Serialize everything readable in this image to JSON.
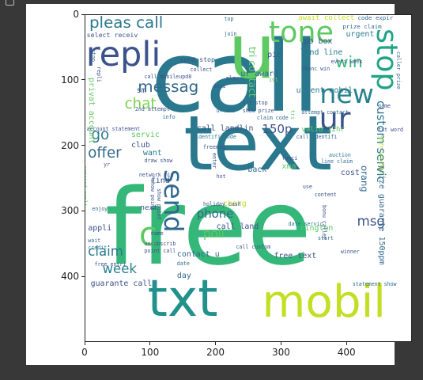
{
  "chart_data": {
    "type": "wordcloud",
    "background": "#ffffff",
    "x_ticks": [
      "0",
      "100",
      "200",
      "300",
      "400"
    ],
    "y_ticks": [
      "0",
      "100",
      "200",
      "300",
      "400"
    ],
    "xlim": [
      0,
      500
    ],
    "ylim": [
      500,
      0
    ],
    "words": [
      {
        "text": "call",
        "size": 150,
        "rotate": 0,
        "color": "#2a788e",
        "x": 100,
        "y": 20
      },
      {
        "text": "free",
        "size": 160,
        "rotate": 0,
        "color": "#35b779",
        "x": 30,
        "y": 245
      },
      {
        "text": "text",
        "size": 115,
        "rotate": 0,
        "color": "#2a788e",
        "x": 150,
        "y": 140
      },
      {
        "text": "txt",
        "size": 78,
        "rotate": 0,
        "color": "#21918c",
        "x": 95,
        "y": 395
      },
      {
        "text": "mobil",
        "size": 68,
        "rotate": 0,
        "color": "#c2df23",
        "x": 270,
        "y": 405
      },
      {
        "text": "u",
        "size": 115,
        "rotate": 0,
        "color": "#5ec962",
        "x": 218,
        "y": 0
      },
      {
        "text": "repli",
        "size": 52,
        "rotate": 0,
        "color": "#3b528b",
        "x": 1,
        "y": 35
      },
      {
        "text": "tone",
        "size": 44,
        "rotate": 0,
        "color": "#5ec962",
        "x": 280,
        "y": 5
      },
      {
        "text": "stop",
        "size": 44,
        "rotate": 90,
        "color": "#20a486",
        "x": 482,
        "y": 20
      },
      {
        "text": "new",
        "size": 40,
        "rotate": 0,
        "color": "#26828e",
        "x": 358,
        "y": 100
      },
      {
        "text": "ur",
        "size": 46,
        "rotate": 0,
        "color": "#3b528b",
        "x": 357,
        "y": 135
      },
      {
        "text": "send",
        "size": 40,
        "rotate": 90,
        "color": "#31688e",
        "x": 155,
        "y": 235
      },
      {
        "text": "c",
        "size": 50,
        "rotate": 0,
        "color": "#5ec962",
        "x": 82,
        "y": 310
      },
      {
        "text": "pleas call",
        "size": 24,
        "rotate": 0,
        "color": "#2a788e",
        "x": 6,
        "y": 0
      },
      {
        "text": "messag",
        "size": 24,
        "rotate": 0,
        "color": "#31688e",
        "x": 80,
        "y": 98
      },
      {
        "text": "chat",
        "size": 22,
        "rotate": 0,
        "color": "#7ad151",
        "x": 60,
        "y": 125
      },
      {
        "text": "win",
        "size": 24,
        "rotate": 0,
        "color": "#35b779",
        "x": 382,
        "y": 60
      },
      {
        "text": "go",
        "size": 22,
        "rotate": 0,
        "color": "#2a788e",
        "x": 9,
        "y": 173
      },
      {
        "text": "offer",
        "size": 22,
        "rotate": 0,
        "color": "#31688e",
        "x": 4,
        "y": 200
      },
      {
        "text": "150p",
        "size": 18,
        "rotate": 0,
        "color": "#3b528b",
        "x": 270,
        "y": 165
      },
      {
        "text": "phone",
        "size": 18,
        "rotate": 0,
        "color": "#31688e",
        "x": 170,
        "y": 295
      },
      {
        "text": "poli",
        "size": 18,
        "rotate": 0,
        "color": "#5ec962",
        "x": 180,
        "y": 325
      },
      {
        "text": "claim",
        "size": 20,
        "rotate": 0,
        "color": "#2a788e",
        "x": 4,
        "y": 352
      },
      {
        "text": "week",
        "size": 20,
        "rotate": 0,
        "color": "#26828e",
        "x": 26,
        "y": 378
      },
      {
        "text": "msg",
        "size": 20,
        "rotate": 0,
        "color": "#3b528b",
        "x": 415,
        "y": 305
      },
      {
        "text": "custom servic",
        "size": 18,
        "rotate": 90,
        "color": "#2a788e",
        "x": 460,
        "y": 130
      },
      {
        "text": "tri contact",
        "size": 15,
        "rotate": 90,
        "color": "#5ec962",
        "x": 262,
        "y": 48
      },
      {
        "text": "orang",
        "size": 14,
        "rotate": 90,
        "color": "#31688e",
        "x": 432,
        "y": 230
      },
      {
        "text": "prize guarante 150ppm",
        "size": 12,
        "rotate": 90,
        "color": "#31688e",
        "x": 458,
        "y": 230
      },
      {
        "text": "privat account",
        "size": 12,
        "rotate": 90,
        "color": "#5ec962",
        "x": 14,
        "y": 95
      },
      {
        "text": "await collect",
        "size": 11,
        "rotate": 0,
        "color": "#c2df23",
        "x": 325,
        "y": 0
      },
      {
        "text": "code expir",
        "size": 9,
        "rotate": 0,
        "color": "#31688e",
        "x": 416,
        "y": 0
      },
      {
        "text": "prize claim",
        "size": 9,
        "rotate": 0,
        "color": "#31688e",
        "x": 393,
        "y": 13
      },
      {
        "text": "urgent",
        "size": 12,
        "rotate": 0,
        "color": "#2a788e",
        "x": 398,
        "y": 24
      },
      {
        "text": "po box",
        "size": 12,
        "rotate": 0,
        "color": "#3b528b",
        "x": 334,
        "y": 35
      },
      {
        "text": "land line",
        "size": 12,
        "rotate": 0,
        "color": "#2a788e",
        "x": 328,
        "y": 52
      },
      {
        "text": "pic",
        "size": 12,
        "rotate": 0,
        "color": "#3b528b",
        "x": 278,
        "y": 55
      },
      {
        "text": "ur award",
        "size": 12,
        "rotate": 0,
        "color": "#31688e",
        "x": 237,
        "y": 85
      },
      {
        "text": "urgent mobil",
        "size": 12,
        "rotate": 0,
        "color": "#2a788e",
        "x": 322,
        "y": 110
      },
      {
        "text": "select receiv",
        "size": 10,
        "rotate": 0,
        "color": "#3b528b",
        "x": 2,
        "y": 25
      },
      {
        "text": "send stop",
        "size": 10,
        "rotate": 0,
        "color": "#3b528b",
        "x": 144,
        "y": 63
      },
      {
        "text": "call landlin",
        "size": 12,
        "rotate": 0,
        "color": "#3b528b",
        "x": 170,
        "y": 168
      },
      {
        "text": "valid 12hr",
        "size": 11,
        "rotate": 0,
        "color": "#5ec962",
        "x": 330,
        "y": 170
      },
      {
        "text": "servic",
        "size": 12,
        "rotate": 0,
        "color": "#5ec962",
        "x": 70,
        "y": 178
      },
      {
        "text": "club",
        "size": 12,
        "rotate": 0,
        "color": "#3b528b",
        "x": 70,
        "y": 193
      },
      {
        "text": "want",
        "size": 12,
        "rotate": 0,
        "color": "#2a788e",
        "x": 88,
        "y": 205
      },
      {
        "text": "back",
        "size": 12,
        "rotate": 0,
        "color": "#31688e",
        "x": 248,
        "y": 231
      },
      {
        "text": "xma",
        "size": 12,
        "rotate": 0,
        "color": "#5ec962",
        "x": 300,
        "y": 226
      },
      {
        "text": "cost",
        "size": 12,
        "rotate": 0,
        "color": "#3b528b",
        "x": 390,
        "y": 236
      },
      {
        "text": "find",
        "size": 12,
        "rotate": 0,
        "color": "#3b528b",
        "x": 100,
        "y": 247
      },
      {
        "text": "next",
        "size": 11,
        "rotate": 0,
        "color": "#3b528b",
        "x": 84,
        "y": 290
      },
      {
        "text": "appli",
        "size": 12,
        "rotate": 0,
        "color": "#3b528b",
        "x": 4,
        "y": 320
      },
      {
        "text": "charg",
        "size": 12,
        "rotate": 0,
        "color": "#c2df23",
        "x": 210,
        "y": 283
      },
      {
        "text": "call land",
        "size": 12,
        "rotate": 0,
        "color": "#3b528b",
        "x": 200,
        "y": 318
      },
      {
        "text": "rington",
        "size": 12,
        "rotate": 0,
        "color": "#5ec962",
        "x": 328,
        "y": 320
      },
      {
        "text": "contact u",
        "size": 12,
        "rotate": 0,
        "color": "#31688e",
        "x": 140,
        "y": 360
      },
      {
        "text": "free text",
        "size": 12,
        "rotate": 0,
        "color": "#3b528b",
        "x": 288,
        "y": 362
      },
      {
        "text": "day",
        "size": 12,
        "rotate": 0,
        "color": "#31688e",
        "x": 140,
        "y": 392
      },
      {
        "text": "guarante call",
        "size": 12,
        "rotate": 0,
        "color": "#3b528b",
        "x": 8,
        "y": 405
      },
      {
        "text": "sm",
        "size": 12,
        "rotate": 0,
        "color": "#3b528b",
        "x": 78,
        "y": 110
      },
      {
        "text": "top",
        "size": 8,
        "rotate": 0,
        "color": "#31688e",
        "x": 212,
        "y": 3
      },
      {
        "text": "join",
        "size": 8,
        "rotate": 0,
        "color": "#31688e",
        "x": 212,
        "y": 25
      },
      {
        "text": "collect",
        "size": 8,
        "rotate": 0,
        "color": "#3b528b",
        "x": 160,
        "y": 80
      },
      {
        "text": "call mobileupd8",
        "size": 8,
        "rotate": 0,
        "color": "#3b528b",
        "x": 90,
        "y": 90
      },
      {
        "text": "play",
        "size": 8,
        "rotate": 0,
        "color": "#3b528b",
        "x": 215,
        "y": 93
      },
      {
        "text": "sexi",
        "size": 8,
        "rotate": 0,
        "color": "#3b528b",
        "x": 195,
        "y": 105
      },
      {
        "text": "1st",
        "size": 8,
        "rotate": 0,
        "color": "#5ec962",
        "x": 280,
        "y": 95
      },
      {
        "text": "txt stop",
        "size": 8,
        "rotate": 0,
        "color": "#3b528b",
        "x": 240,
        "y": 130
      },
      {
        "text": "ur mob",
        "size": 8,
        "rotate": 0,
        "color": "#31688e",
        "x": 200,
        "y": 143
      },
      {
        "text": "show prize",
        "size": 8,
        "rotate": 0,
        "color": "#3b528b",
        "x": 240,
        "y": 143
      },
      {
        "text": "claim code",
        "size": 8,
        "rotate": 0,
        "color": "#31688e",
        "x": 262,
        "y": 153
      },
      {
        "text": "2nd attempt",
        "size": 8,
        "rotate": 0,
        "color": "#3b528b",
        "x": 76,
        "y": 140
      },
      {
        "text": "info",
        "size": 8,
        "rotate": 0,
        "color": "#31688e",
        "x": 118,
        "y": 152
      },
      {
        "text": "account statement",
        "size": 8,
        "rotate": 0,
        "color": "#3b528b",
        "x": 2,
        "y": 170
      },
      {
        "text": "identifi code",
        "size": 8,
        "rotate": 0,
        "color": "#2a788e",
        "x": 168,
        "y": 182
      },
      {
        "text": "call identifi",
        "size": 8,
        "rotate": 0,
        "color": "#31688e",
        "x": 322,
        "y": 182
      },
      {
        "text": "freemsg",
        "size": 8,
        "rotate": 0,
        "color": "#3b528b",
        "x": 180,
        "y": 198
      },
      {
        "text": "draw show",
        "size": 8,
        "rotate": 0,
        "color": "#3b528b",
        "x": 90,
        "y": 218
      },
      {
        "text": "fanci",
        "size": 8,
        "rotate": 0,
        "color": "#3b528b",
        "x": 300,
        "y": 215
      },
      {
        "text": "auction",
        "size": 8,
        "rotate": 0,
        "color": "#2a788e",
        "x": 372,
        "y": 210
      },
      {
        "text": "line claim",
        "size": 8,
        "rotate": 0,
        "color": "#31688e",
        "x": 360,
        "y": 220
      },
      {
        "text": "yr",
        "size": 8,
        "rotate": 0,
        "color": "#3b528b",
        "x": 28,
        "y": 225
      },
      {
        "text": "network min",
        "size": 8,
        "rotate": 0,
        "color": "#3b528b",
        "x": 82,
        "y": 240
      },
      {
        "text": "hot",
        "size": 8,
        "rotate": 0,
        "color": "#3b528b",
        "x": 200,
        "y": 243
      },
      {
        "text": "use",
        "size": 8,
        "rotate": 0,
        "color": "#3b528b",
        "x": 332,
        "y": 258
      },
      {
        "text": "content",
        "size": 8,
        "rotate": 0,
        "color": "#3b528b",
        "x": 350,
        "y": 270
      },
      {
        "text": "holiday cash",
        "size": 8,
        "rotate": 0,
        "color": "#3b528b",
        "x": 180,
        "y": 285
      },
      {
        "text": "enjoy",
        "size": 8,
        "rotate": 0,
        "color": "#31688e",
        "x": 10,
        "y": 292
      },
      {
        "text": "date servic",
        "size": 8,
        "rotate": 0,
        "color": "#2a788e",
        "x": 310,
        "y": 315
      },
      {
        "text": "name",
        "size": 8,
        "rotate": 0,
        "color": "#3b528b",
        "x": 100,
        "y": 330
      },
      {
        "text": "start",
        "size": 8,
        "rotate": 0,
        "color": "#31688e",
        "x": 355,
        "y": 337
      },
      {
        "text": "wait",
        "size": 8,
        "rotate": 0,
        "color": "#31688e",
        "x": 4,
        "y": 340
      },
      {
        "text": "credit",
        "size": 8,
        "rotate": 0,
        "color": "#2a788e",
        "x": 4,
        "y": 352
      },
      {
        "text": "unsubscrib",
        "size": 8,
        "rotate": 0,
        "color": "#3b528b",
        "x": 90,
        "y": 345
      },
      {
        "text": "call custom",
        "size": 8,
        "rotate": 0,
        "color": "#3b528b",
        "x": 230,
        "y": 350
      },
      {
        "text": "point call",
        "size": 8,
        "rotate": 0,
        "color": "#3b528b",
        "x": 90,
        "y": 356
      },
      {
        "text": "date",
        "size": 8,
        "rotate": 0,
        "color": "#31688e",
        "x": 140,
        "y": 375
      },
      {
        "text": "winner",
        "size": 8,
        "rotate": 0,
        "color": "#3b528b",
        "x": 390,
        "y": 358
      },
      {
        "text": "free entri",
        "size": 8,
        "rotate": 0,
        "color": "#3b528b",
        "x": 14,
        "y": 377
      },
      {
        "text": "statement show",
        "size": 8,
        "rotate": 0,
        "color": "#31688e",
        "x": 408,
        "y": 407
      },
      {
        "text": "attempt contact",
        "size": 8,
        "rotate": 0,
        "color": "#31688e",
        "x": 330,
        "y": 145
      },
      {
        "text": "game",
        "size": 8,
        "rotate": 0,
        "color": "#3b528b",
        "x": 447,
        "y": 135
      },
      {
        "text": "txt word",
        "size": 8,
        "rotate": 0,
        "color": "#3b528b",
        "x": 447,
        "y": 172
      },
      {
        "text": "everi week",
        "size": 8,
        "rotate": 0,
        "color": "#3b528b",
        "x": 375,
        "y": 68
      },
      {
        "text": "chanc win",
        "size": 8,
        "rotate": 0,
        "color": "#3b528b",
        "x": 330,
        "y": 78
      },
      {
        "text": "caller prize",
        "size": 8,
        "rotate": 90,
        "color": "#31688e",
        "x": 482,
        "y": 55
      },
      {
        "text": "stop",
        "size": 8,
        "rotate": 90,
        "color": "#31688e",
        "x": 16,
        "y": 52
      },
      {
        "text": "repli",
        "size": 8,
        "rotate": 90,
        "color": "#3b528b",
        "x": 24,
        "y": 78
      },
      {
        "text": "camcord repli",
        "size": 8,
        "rotate": 90,
        "color": "#5ec962",
        "x": 2,
        "y": 230
      },
      {
        "text": "show point",
        "size": 8,
        "rotate": 90,
        "color": "#3b528b",
        "x": 106,
        "y": 250
      },
      {
        "text": "show point",
        "size": 8,
        "rotate": 90,
        "color": "#3b528b",
        "x": 116,
        "y": 265
      },
      {
        "text": "enter",
        "size": 8,
        "rotate": 90,
        "color": "#3b528b",
        "x": 200,
        "y": 210
      },
      {
        "text": "bonu caller",
        "size": 8,
        "rotate": 90,
        "color": "#3b528b",
        "x": 368,
        "y": 290
      },
      {
        "text": "gift voucher",
        "size": 8,
        "rotate": 90,
        "color": "#c2df23",
        "x": 455,
        "y": 185
      },
      {
        "text": "tri",
        "size": 8,
        "rotate": 90,
        "color": "#5ec962",
        "x": 320,
        "y": 145
      }
    ]
  }
}
